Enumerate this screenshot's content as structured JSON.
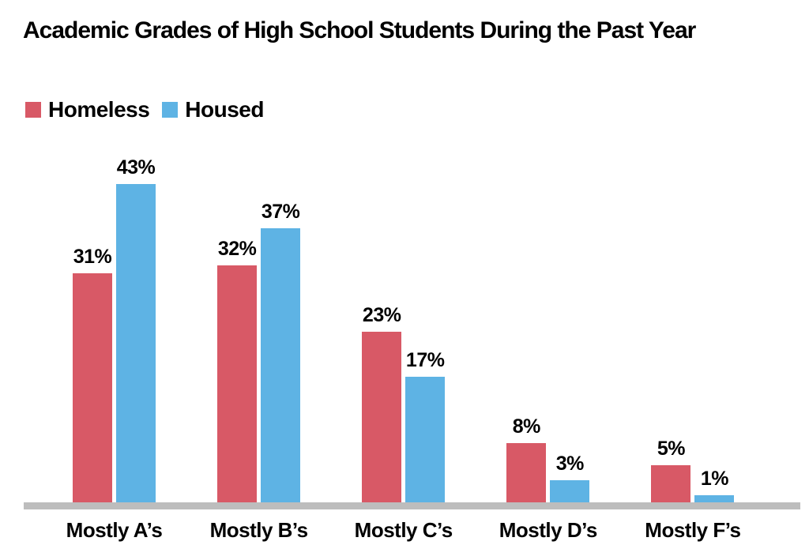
{
  "title": "Academic Grades of High School Students During the Past Year",
  "legend": [
    {
      "label": "Homeless",
      "color": "#d85966"
    },
    {
      "label": "Housed",
      "color": "#5eb3e4"
    }
  ],
  "colors": {
    "homeless": "#d85966",
    "housed": "#5eb3e4",
    "axis_line": "#bdbdbd",
    "text": "#000000",
    "background": "#ffffff"
  },
  "chart_data": {
    "type": "bar",
    "title": "Academic Grades of High School Students During the Past Year",
    "categories": [
      "Mostly A’s",
      "Mostly B’s",
      "Mostly C’s",
      "Mostly D’s",
      "Mostly F’s"
    ],
    "series": [
      {
        "name": "Homeless",
        "color": "#d85966",
        "values": [
          31,
          32,
          23,
          8,
          5
        ]
      },
      {
        "name": "Housed",
        "color": "#5eb3e4",
        "values": [
          43,
          37,
          17,
          3,
          1
        ]
      }
    ],
    "value_suffix": "%",
    "value_labels": true,
    "xlabel": "",
    "ylabel": "",
    "ylim": [
      0,
      45
    ],
    "grid": false,
    "y_axis_visible": false,
    "legend_position": "top-left",
    "axis_line_color": "#bdbdbd"
  }
}
